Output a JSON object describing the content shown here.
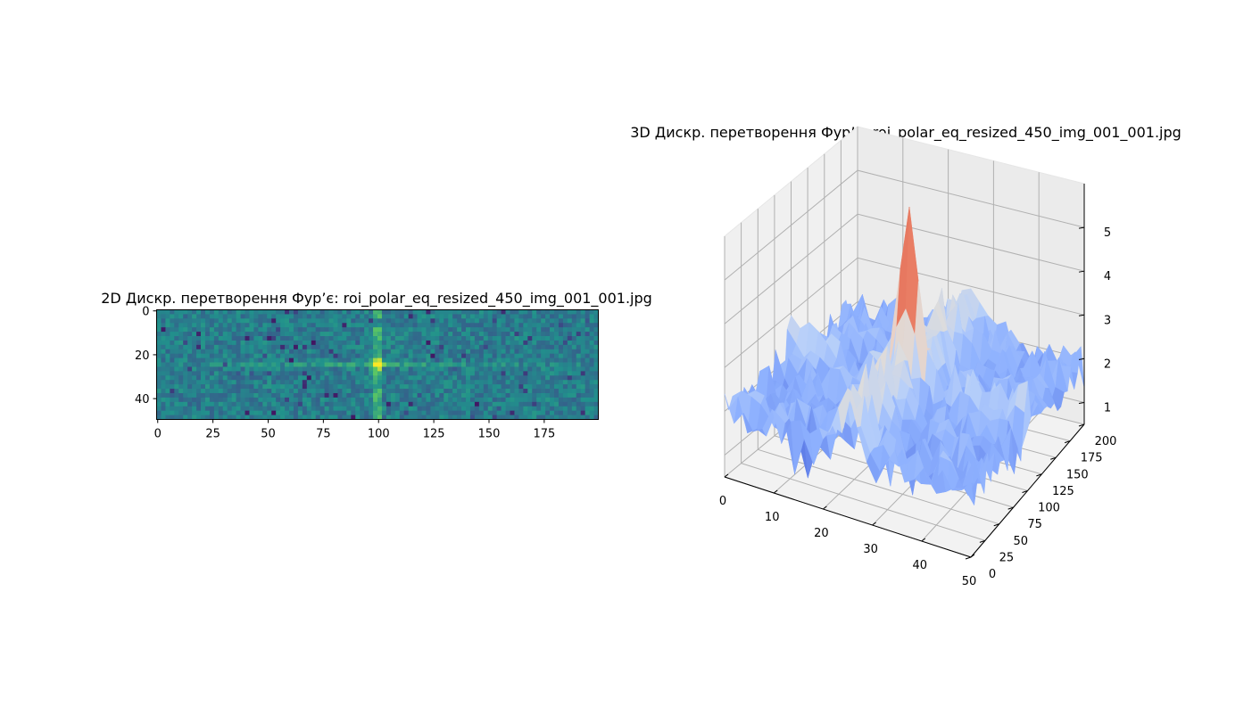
{
  "chart_data": [
    {
      "type": "heatmap",
      "title": "2D Дискр. перетворення Фур’є: roi_polar_eq_resized_450_img_001_001.jpg",
      "colormap": "viridis",
      "x_ticks": [
        "0",
        "25",
        "50",
        "75",
        "100",
        "125",
        "150",
        "175"
      ],
      "y_ticks": [
        "0",
        "20",
        "40"
      ],
      "xlim": [
        0,
        200
      ],
      "ylim": [
        50,
        0
      ],
      "grid": false
    },
    {
      "type": "surface",
      "title": "3D Дискр. перетворення Фур’є: roi_polar_eq_resized_450_img_001_001.jpg",
      "colormap": "coolwarm",
      "x_ticks": [
        "0",
        "10",
        "20",
        "30",
        "40",
        "50"
      ],
      "y_ticks": [
        "0",
        "25",
        "50",
        "75",
        "100",
        "125",
        "150",
        "175",
        "200"
      ],
      "z_ticks": [
        "1",
        "2",
        "3",
        "4",
        "5"
      ],
      "xlim": [
        0,
        50
      ],
      "ylim": [
        0,
        200
      ],
      "zlim": [
        0.5,
        6
      ],
      "grid": true
    }
  ]
}
